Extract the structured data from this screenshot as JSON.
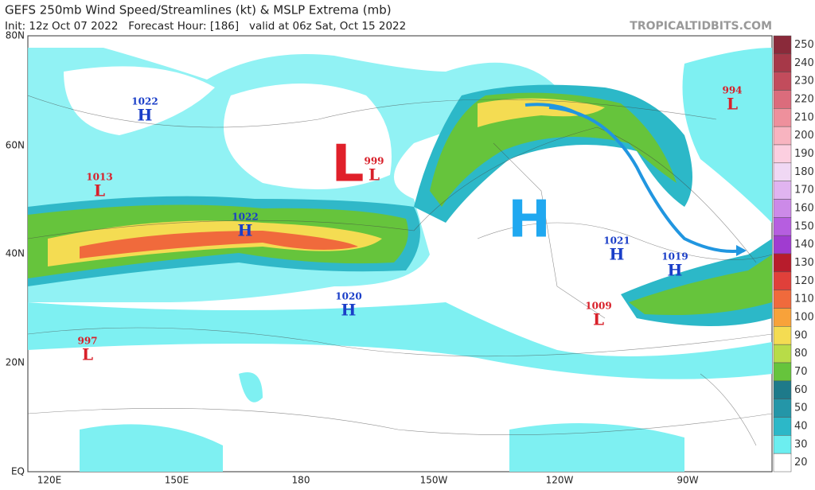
{
  "header": {
    "title": "GEFS 250mb Wind Speed/Streamlines (kt) & MSLP Extrema (mb)",
    "subtitle": "Init: 12z Oct 07 2022   Forecast Hour: [186]   valid at 06z Sat, Oct 15 2022",
    "watermark": "TROPICALTIDBITS.COM"
  },
  "map": {
    "lat_labels": [
      "80N",
      "60N",
      "40N",
      "20N",
      "EQ"
    ],
    "lon_labels": [
      "120E",
      "150E",
      "180",
      "150W",
      "120W",
      "90W"
    ],
    "annotations": [
      "L",
      "H"
    ],
    "pressure_centers": [
      {
        "type": "H",
        "value": 1022
      },
      {
        "type": "L",
        "value": 1013
      },
      {
        "type": "L",
        "value": 999
      },
      {
        "type": "H",
        "value": 1022
      },
      {
        "type": "H",
        "value": 1020
      },
      {
        "type": "L",
        "value": 997
      },
      {
        "type": "H",
        "value": 1021
      },
      {
        "type": "H",
        "value": 1019
      },
      {
        "type": "L",
        "value": 1009
      },
      {
        "type": "L",
        "value": 994
      }
    ]
  },
  "colorbar": {
    "ticks": [
      250,
      240,
      230,
      220,
      210,
      200,
      190,
      180,
      170,
      160,
      150,
      140,
      130,
      120,
      110,
      100,
      90,
      80,
      70,
      60,
      50,
      40,
      30,
      20
    ],
    "colors": [
      "#8a2a3a",
      "#a63848",
      "#c24c5c",
      "#db6c7c",
      "#ee909c",
      "#f8b4c0",
      "#fccfe0",
      "#f0d8f4",
      "#e0b4f0",
      "#cc8ae8",
      "#b65ee0",
      "#a03cd0",
      "#b81c2c",
      "#e0403a",
      "#f06a3c",
      "#f8a23a",
      "#f4dc52",
      "#b8dc48",
      "#66c43c",
      "#1e7a8a",
      "#2496a8",
      "#2cb8c8",
      "#6ceef0",
      "#ffffff"
    ]
  }
}
